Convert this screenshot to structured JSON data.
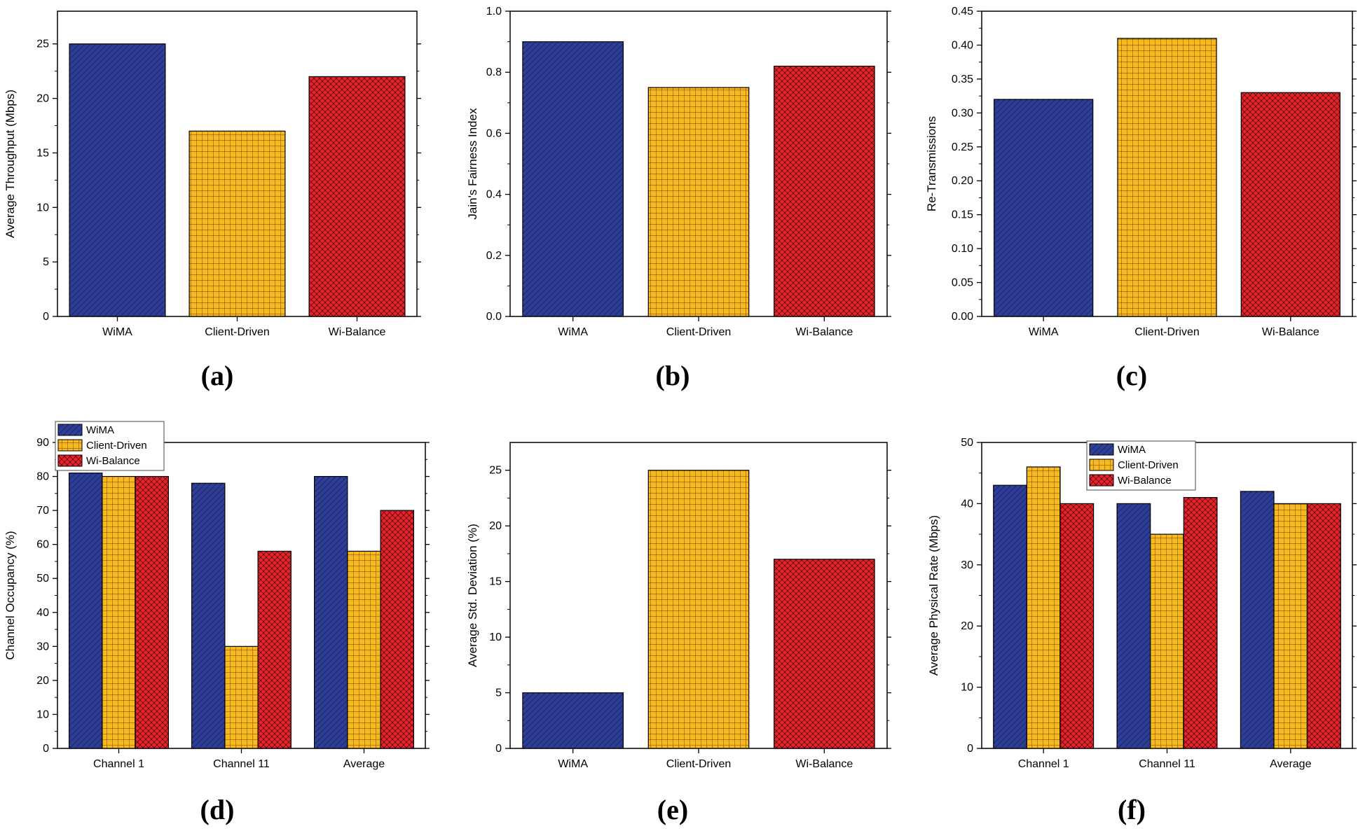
{
  "colors": {
    "WiMA": "#2f3f97",
    "Client-Driven": "#f7b820",
    "Wi-Balance": "#e8232b"
  },
  "chart_data": [
    {
      "id": "a",
      "caption": "(a)",
      "type": "bar",
      "ylabel": "Average Throughput (Mbps)",
      "ylim": [
        0,
        28
      ],
      "yticks": [
        0,
        5,
        10,
        15,
        20,
        25
      ],
      "ytick_labels": [
        "0",
        "5",
        "10",
        "15",
        "20",
        "25"
      ],
      "categories": [
        "WiMA",
        "Client-Driven",
        "Wi-Balance"
      ],
      "values": [
        25,
        17,
        22
      ],
      "legend": null
    },
    {
      "id": "b",
      "caption": "(b)",
      "type": "bar",
      "ylabel": "Jain's Fairness Index",
      "ylim": [
        0,
        1.0
      ],
      "yticks": [
        0,
        0.2,
        0.4,
        0.6,
        0.8,
        1.0
      ],
      "ytick_labels": [
        "0.0",
        "0.2",
        "0.4",
        "0.6",
        "0.8",
        "1.0"
      ],
      "categories": [
        "WiMA",
        "Client-Driven",
        "Wi-Balance"
      ],
      "values": [
        0.9,
        0.75,
        0.82
      ],
      "legend": null
    },
    {
      "id": "c",
      "caption": "(c)",
      "type": "bar",
      "ylabel": "Re-Transmissions",
      "ylim": [
        0,
        0.45
      ],
      "yticks": [
        0,
        0.05,
        0.1,
        0.15,
        0.2,
        0.25,
        0.3,
        0.35,
        0.4,
        0.45
      ],
      "ytick_labels": [
        "0.00",
        "0.05",
        "0.10",
        "0.15",
        "0.20",
        "0.25",
        "0.30",
        "0.35",
        "0.40",
        "0.45"
      ],
      "categories": [
        "WiMA",
        "Client-Driven",
        "Wi-Balance"
      ],
      "values": [
        0.32,
        0.41,
        0.33
      ],
      "legend": null
    },
    {
      "id": "d",
      "caption": "(d)",
      "type": "bar",
      "ylabel": "Channel Occupancy (%)",
      "ylim": [
        0,
        90
      ],
      "yticks": [
        0,
        10,
        20,
        30,
        40,
        50,
        60,
        70,
        80,
        90
      ],
      "ytick_labels": [
        "0",
        "10",
        "20",
        "30",
        "40",
        "50",
        "60",
        "70",
        "80",
        "90"
      ],
      "categories": [
        "Channel 1",
        "Channel 11",
        "Average"
      ],
      "series": [
        {
          "name": "WiMA",
          "values": [
            81,
            78,
            80
          ]
        },
        {
          "name": "Client-Driven",
          "values": [
            80,
            30,
            58
          ]
        },
        {
          "name": "Wi-Balance",
          "values": [
            80,
            58,
            70
          ]
        }
      ],
      "legend": "top-left"
    },
    {
      "id": "e",
      "caption": "(e)",
      "type": "bar",
      "ylabel": "Average Std. Deviation (%)",
      "ylim": [
        0,
        27.5
      ],
      "yticks": [
        0,
        5,
        10,
        15,
        20,
        25
      ],
      "ytick_labels": [
        "0",
        "5",
        "10",
        "15",
        "20",
        "25"
      ],
      "categories": [
        "WiMA",
        "Client-Driven",
        "Wi-Balance"
      ],
      "values": [
        5,
        25,
        17
      ],
      "legend": null
    },
    {
      "id": "f",
      "caption": "(f)",
      "type": "bar",
      "ylabel": "Average Physical Rate (Mbps)",
      "ylim": [
        0,
        50
      ],
      "yticks": [
        0,
        10,
        20,
        30,
        40,
        50
      ],
      "ytick_labels": [
        "0",
        "10",
        "20",
        "30",
        "40",
        "50"
      ],
      "categories": [
        "Channel 1",
        "Channel 11",
        "Average"
      ],
      "series": [
        {
          "name": "WiMA",
          "values": [
            43,
            40,
            42
          ]
        },
        {
          "name": "Client-Driven",
          "values": [
            46,
            35,
            40
          ]
        },
        {
          "name": "Wi-Balance",
          "values": [
            40,
            41,
            40
          ]
        }
      ],
      "legend": "top-center"
    }
  ]
}
